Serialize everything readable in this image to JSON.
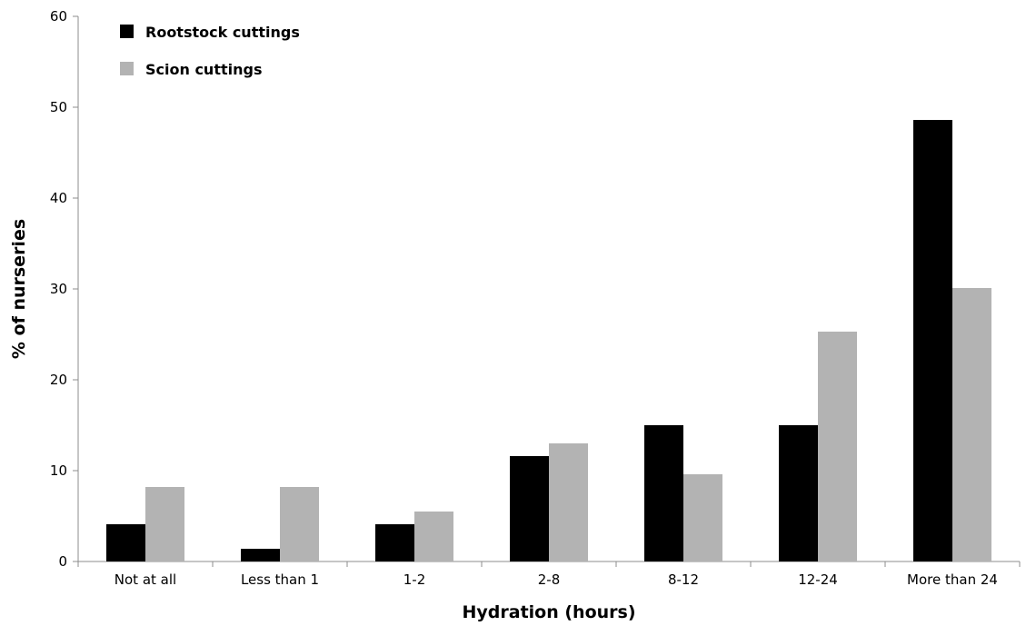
{
  "chart_data": {
    "type": "bar",
    "title": "",
    "xlabel": "Hydration (hours)",
    "ylabel": "% of nurseries",
    "categories": [
      "Not at all",
      "Less than 1",
      "1-2",
      "2-8",
      "8-12",
      "12-24",
      "More than 24"
    ],
    "series": [
      {
        "name": "Rootstock cuttings",
        "color": "#000000",
        "values": [
          4.1,
          1.4,
          4.1,
          11.6,
          15.0,
          15.0,
          48.6
        ]
      },
      {
        "name": "Scion cuttings",
        "color": "#b3b3b3",
        "values": [
          8.2,
          8.2,
          5.5,
          13.0,
          9.6,
          25.3,
          30.1
        ]
      }
    ],
    "ylim": [
      0,
      60
    ],
    "yticks": [
      0,
      10,
      20,
      30,
      40,
      50,
      60
    ],
    "grid": false,
    "legend_position": "top-left"
  }
}
